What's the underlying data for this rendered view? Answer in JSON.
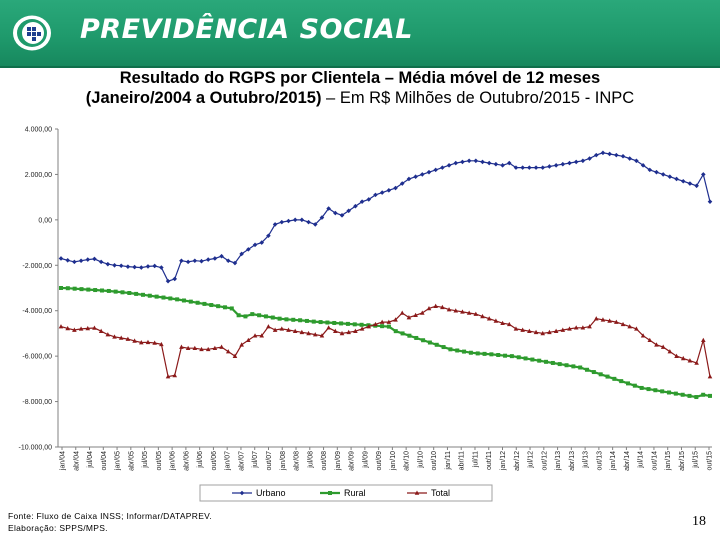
{
  "header": {
    "brand": "PREVIDÊNCIA SOCIAL",
    "logo_icon": "previdencia-logo-icon",
    "background_color": "#1f9a6c"
  },
  "title": {
    "line1": "Resultado do RGPS por Clientela – Média móvel de 12 meses",
    "line2_prefix": "(Janeiro/2004 a Outubro/2015)",
    "line2_suffix": " – Em R$ Milhões de Outubro/2015 - INPC"
  },
  "footer": {
    "source": "Fonte: Fluxo de Caixa INSS; Informar/DATAPREV.",
    "credit": "Elaboração: SPPS/MPS.",
    "page_number": "18"
  },
  "chart_data": {
    "type": "line",
    "title": "Resultado do RGPS por Clientela – Média móvel de 12 meses (Janeiro/2004 a Outubro/2015) – Em R$ Milhões de Outubro/2015 - INPC",
    "xlabel": "",
    "ylabel": "",
    "ylim": [
      -10000,
      4000
    ],
    "yticks": [
      "4.000,00",
      "2.000,00",
      "0,00",
      "-2.000,00",
      "-4.000,00",
      "-6.000,00",
      "-8.000,00",
      "-10.000,00"
    ],
    "ytick_values": [
      4000,
      2000,
      0,
      -2000,
      -4000,
      -6000,
      -8000,
      -10000
    ],
    "x_tick_labels": [
      "jan/04",
      "abr/04",
      "jul/04",
      "out/04",
      "jan/05",
      "abr/05",
      "jul/05",
      "out/05",
      "jan/06",
      "abr/06",
      "jul/06",
      "out/06",
      "jan/07",
      "abr/07",
      "jul/07",
      "out/07",
      "jan/08",
      "abr/08",
      "jul/08",
      "out/08",
      "jan/09",
      "abr/09",
      "jul/09",
      "out/09",
      "jan/10",
      "abr/10",
      "jul/10",
      "out/10",
      "jan/11",
      "abr/11",
      "jul/11",
      "out/11",
      "jan/12",
      "abr/12",
      "jul/12",
      "out/12",
      "jan/13",
      "abr/13",
      "jul/13",
      "out/13",
      "jan/14",
      "abr/14",
      "jul/14",
      "out/14",
      "jan/15",
      "abr/15",
      "jul/15",
      "out/15"
    ],
    "grid": false,
    "legend_position": "bottom",
    "series": [
      {
        "name": "Urbano",
        "color": "#1f2f8f",
        "marker": "diamond",
        "values": [
          -1700,
          -1780,
          -1850,
          -1800,
          -1750,
          -1720,
          -1850,
          -1950,
          -2000,
          -2020,
          -2060,
          -2080,
          -2100,
          -2050,
          -2030,
          -2100,
          -2700,
          -2600,
          -1800,
          -1850,
          -1800,
          -1820,
          -1750,
          -1700,
          -1600,
          -1800,
          -1900,
          -1500,
          -1300,
          -1100,
          -1000,
          -700,
          -200,
          -100,
          -50,
          0,
          0,
          -100,
          -200,
          100,
          500,
          300,
          200,
          400,
          600,
          800,
          900,
          1100,
          1200,
          1300,
          1400,
          1600,
          1800,
          1900,
          2000,
          2100,
          2200,
          2300,
          2400,
          2500,
          2550,
          2600,
          2600,
          2550,
          2500,
          2450,
          2400,
          2500,
          2300,
          2300,
          2300,
          2300,
          2300,
          2350,
          2400,
          2450,
          2500,
          2550,
          2600,
          2700,
          2850,
          2950,
          2900,
          2850,
          2800,
          2700,
          2600,
          2400,
          2200,
          2100,
          2000,
          1900,
          1800,
          1700,
          1600,
          1500,
          2000,
          800
        ]
      },
      {
        "name": "Rural",
        "color": "#2e9b2e",
        "marker": "square",
        "values": [
          -3000,
          -3010,
          -3030,
          -3050,
          -3070,
          -3090,
          -3110,
          -3130,
          -3160,
          -3190,
          -3220,
          -3260,
          -3300,
          -3340,
          -3380,
          -3420,
          -3460,
          -3500,
          -3550,
          -3600,
          -3650,
          -3700,
          -3750,
          -3800,
          -3850,
          -3900,
          -4200,
          -4250,
          -4150,
          -4200,
          -4250,
          -4300,
          -4350,
          -4380,
          -4400,
          -4420,
          -4450,
          -4480,
          -4500,
          -4520,
          -4540,
          -4560,
          -4580,
          -4600,
          -4620,
          -4640,
          -4660,
          -4680,
          -4700,
          -4900,
          -5000,
          -5100,
          -5200,
          -5300,
          -5400,
          -5500,
          -5600,
          -5700,
          -5750,
          -5800,
          -5850,
          -5880,
          -5900,
          -5920,
          -5950,
          -5980,
          -6000,
          -6050,
          -6100,
          -6150,
          -6200,
          -6250,
          -6300,
          -6350,
          -6400,
          -6450,
          -6500,
          -6600,
          -6700,
          -6800,
          -6900,
          -7000,
          -7100,
          -7200,
          -7300,
          -7400,
          -7450,
          -7500,
          -7550,
          -7600,
          -7650,
          -7700,
          -7750,
          -7800,
          -7700,
          -7750
        ]
      },
      {
        "name": "Total",
        "color": "#8b1a1a",
        "marker": "triangle",
        "values": [
          -4700,
          -4780,
          -4850,
          -4800,
          -4780,
          -4760,
          -4900,
          -5050,
          -5150,
          -5200,
          -5250,
          -5330,
          -5400,
          -5390,
          -5420,
          -5480,
          -6900,
          -6850,
          -5600,
          -5650,
          -5650,
          -5700,
          -5700,
          -5650,
          -5600,
          -5800,
          -6000,
          -5500,
          -5300,
          -5100,
          -5100,
          -4700,
          -4850,
          -4800,
          -4850,
          -4900,
          -4950,
          -5000,
          -5050,
          -5100,
          -4750,
          -4900,
          -5000,
          -4950,
          -4900,
          -4800,
          -4700,
          -4600,
          -4500,
          -4500,
          -4400,
          -4100,
          -4300,
          -4200,
          -4100,
          -3900,
          -3800,
          -3850,
          -3950,
          -4000,
          -4050,
          -4100,
          -4150,
          -4250,
          -4350,
          -4450,
          -4550,
          -4600,
          -4800,
          -4850,
          -4900,
          -4950,
          -5000,
          -4950,
          -4900,
          -4850,
          -4800,
          -4750,
          -4750,
          -4700,
          -4350,
          -4400,
          -4450,
          -4500,
          -4600,
          -4700,
          -4800,
          -5100,
          -5300,
          -5500,
          -5600,
          -5800,
          -6000,
          -6100,
          -6200,
          -6300,
          -5300,
          -6900
        ]
      }
    ]
  }
}
